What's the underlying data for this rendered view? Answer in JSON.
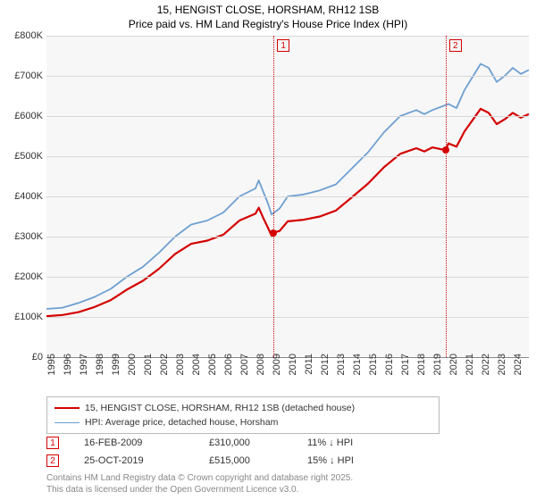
{
  "title_line1": "15, HENGIST CLOSE, HORSHAM, RH12 1SB",
  "title_line2": "Price paid vs. HM Land Registry's House Price Index (HPI)",
  "chart": {
    "type": "line",
    "background_color": "#f7f7f7",
    "grid_color": "#d8d8d8",
    "axis_color": "#888888",
    "x_years": [
      1995,
      1996,
      1997,
      1998,
      1999,
      2000,
      2001,
      2002,
      2003,
      2004,
      2005,
      2006,
      2007,
      2008,
      2009,
      2010,
      2011,
      2012,
      2013,
      2014,
      2015,
      2016,
      2017,
      2018,
      2019,
      2020,
      2021,
      2022,
      2023,
      2024
    ],
    "xlim": [
      1995,
      2025
    ],
    "ylim": [
      0,
      800000
    ],
    "ytick_step": 100000,
    "ytick_labels": [
      "£0",
      "£100K",
      "£200K",
      "£300K",
      "£400K",
      "£500K",
      "£600K",
      "£700K",
      "£800K"
    ],
    "label_fontsize": 11,
    "title_fontsize": 12,
    "series": [
      {
        "name": "hpi",
        "label": "HPI: Average price, detached house, Horsham",
        "color": "#6d9fd1",
        "width": 1.8,
        "data": [
          [
            1995,
            120000
          ],
          [
            1996,
            123000
          ],
          [
            1997,
            135000
          ],
          [
            1998,
            150000
          ],
          [
            1999,
            170000
          ],
          [
            2000,
            200000
          ],
          [
            2001,
            225000
          ],
          [
            2002,
            260000
          ],
          [
            2003,
            300000
          ],
          [
            2004,
            330000
          ],
          [
            2005,
            340000
          ],
          [
            2006,
            360000
          ],
          [
            2007,
            400000
          ],
          [
            2008,
            420000
          ],
          [
            2008.2,
            440000
          ],
          [
            2008.5,
            410000
          ],
          [
            2008.8,
            380000
          ],
          [
            2009,
            355000
          ],
          [
            2009.5,
            370000
          ],
          [
            2010,
            400000
          ],
          [
            2011,
            405000
          ],
          [
            2012,
            415000
          ],
          [
            2013,
            430000
          ],
          [
            2014,
            470000
          ],
          [
            2015,
            510000
          ],
          [
            2016,
            560000
          ],
          [
            2017,
            600000
          ],
          [
            2018,
            615000
          ],
          [
            2018.5,
            605000
          ],
          [
            2019,
            615000
          ],
          [
            2020,
            630000
          ],
          [
            2020.5,
            620000
          ],
          [
            2021,
            665000
          ],
          [
            2022,
            730000
          ],
          [
            2022.5,
            720000
          ],
          [
            2023,
            685000
          ],
          [
            2023.5,
            700000
          ],
          [
            2024,
            720000
          ],
          [
            2024.5,
            705000
          ],
          [
            2025,
            715000
          ]
        ]
      },
      {
        "name": "price-paid",
        "label": "15, HENGIST CLOSE, HORSHAM, RH12 1SB (detached house)",
        "color": "#d40000",
        "width": 2.2,
        "data": [
          [
            1995,
            102000
          ],
          [
            1996,
            105000
          ],
          [
            1997,
            112000
          ],
          [
            1998,
            125000
          ],
          [
            1999,
            142000
          ],
          [
            2000,
            168000
          ],
          [
            2001,
            190000
          ],
          [
            2002,
            220000
          ],
          [
            2003,
            257000
          ],
          [
            2004,
            282000
          ],
          [
            2005,
            290000
          ],
          [
            2006,
            305000
          ],
          [
            2007,
            340000
          ],
          [
            2008,
            357000
          ],
          [
            2008.2,
            372000
          ],
          [
            2008.5,
            345000
          ],
          [
            2008.8,
            320000
          ],
          [
            2009,
            302000
          ],
          [
            2009.12,
            310000
          ],
          [
            2009.5,
            314000
          ],
          [
            2010,
            338000
          ],
          [
            2011,
            342000
          ],
          [
            2012,
            350000
          ],
          [
            2013,
            365000
          ],
          [
            2014,
            398000
          ],
          [
            2015,
            432000
          ],
          [
            2016,
            473000
          ],
          [
            2017,
            506000
          ],
          [
            2018,
            520000
          ],
          [
            2018.5,
            512000
          ],
          [
            2019,
            522000
          ],
          [
            2019.82,
            515000
          ],
          [
            2020,
            532000
          ],
          [
            2020.5,
            524000
          ],
          [
            2021,
            562000
          ],
          [
            2022,
            618000
          ],
          [
            2022.5,
            608000
          ],
          [
            2023,
            580000
          ],
          [
            2023.5,
            592000
          ],
          [
            2024,
            608000
          ],
          [
            2024.5,
            596000
          ],
          [
            2025,
            605000
          ]
        ]
      }
    ],
    "markers": [
      {
        "n": "1",
        "year": 2009.12,
        "value": 310000,
        "color": "#d40000"
      },
      {
        "n": "2",
        "year": 2019.82,
        "value": 515000,
        "color": "#d40000"
      }
    ]
  },
  "legend": {
    "series1_label": "15, HENGIST CLOSE, HORSHAM, RH12 1SB (detached house)",
    "series2_label": "HPI: Average price, detached house, Horsham"
  },
  "events": [
    {
      "n": "1",
      "date": "16-FEB-2009",
      "price": "£310,000",
      "diff": "11% ↓ HPI",
      "color": "#d40000"
    },
    {
      "n": "2",
      "date": "25-OCT-2019",
      "price": "£515,000",
      "diff": "15% ↓ HPI",
      "color": "#d40000"
    }
  ],
  "footer_line1": "Contains HM Land Registry data © Crown copyright and database right 2025.",
  "footer_line2": "This data is licensed under the Open Government Licence v3.0."
}
